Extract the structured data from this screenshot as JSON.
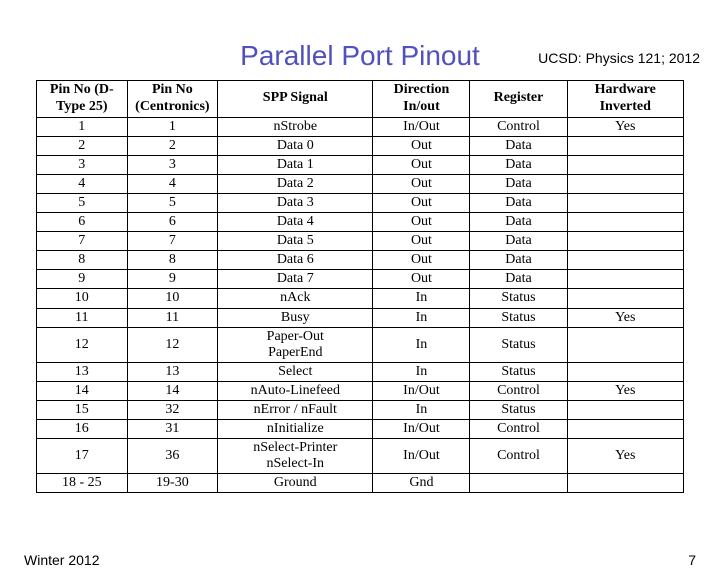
{
  "header": {
    "course": "UCSD: Physics 121; 2012"
  },
  "title": "Parallel Port Pinout",
  "table": {
    "columns": [
      "Pin No (D-Type 25)",
      "Pin No (Centronics)",
      "SPP Signal",
      "Direction In/out",
      "Register",
      "Hardware Inverted"
    ],
    "rows": [
      {
        "c": [
          "1",
          "1",
          "nStrobe",
          "In/Out",
          "Control",
          "Yes"
        ],
        "sub": null
      },
      {
        "c": [
          "2",
          "2",
          "Data 0",
          "Out",
          "Data",
          ""
        ],
        "sub": null
      },
      {
        "c": [
          "3",
          "3",
          "Data 1",
          "Out",
          "Data",
          ""
        ],
        "sub": null
      },
      {
        "c": [
          "4",
          "4",
          "Data 2",
          "Out",
          "Data",
          ""
        ],
        "sub": null
      },
      {
        "c": [
          "5",
          "5",
          "Data 3",
          "Out",
          "Data",
          ""
        ],
        "sub": null
      },
      {
        "c": [
          "6",
          "6",
          "Data 4",
          "Out",
          "Data",
          ""
        ],
        "sub": null
      },
      {
        "c": [
          "7",
          "7",
          "Data 5",
          "Out",
          "Data",
          ""
        ],
        "sub": null
      },
      {
        "c": [
          "8",
          "8",
          "Data 6",
          "Out",
          "Data",
          ""
        ],
        "sub": null
      },
      {
        "c": [
          "9",
          "9",
          "Data 7",
          "Out",
          "Data",
          ""
        ],
        "sub": null
      },
      {
        "c": [
          "10",
          "10",
          "nAck",
          "In",
          "Status",
          ""
        ],
        "sub": null
      },
      {
        "c": [
          "11",
          "11",
          "Busy",
          "In",
          "Status",
          "Yes"
        ],
        "sub": null
      },
      {
        "c": [
          "12",
          "12",
          "Paper-Out",
          "In",
          "Status",
          ""
        ],
        "sub": "PaperEnd"
      },
      {
        "c": [
          "13",
          "13",
          "Select",
          "In",
          "Status",
          ""
        ],
        "sub": null
      },
      {
        "c": [
          "14",
          "14",
          "nAuto-Linefeed",
          "In/Out",
          "Control",
          "Yes"
        ],
        "sub": null
      },
      {
        "c": [
          "15",
          "32",
          "nError / nFault",
          "In",
          "Status",
          ""
        ],
        "sub": null
      },
      {
        "c": [
          "16",
          "31",
          "nInitialize",
          "In/Out",
          "Control",
          ""
        ],
        "sub": null
      },
      {
        "c": [
          "17",
          "36",
          "nSelect-Printer",
          "In/Out",
          "Control",
          "Yes"
        ],
        "sub": "nSelect-In"
      },
      {
        "c": [
          "18 - 25",
          "19-30",
          "Ground",
          "Gnd",
          "",
          ""
        ],
        "sub": null
      }
    ],
    "style": {
      "border_color": "#000000",
      "header_font_weight": "bold",
      "cell_font_family": "Times New Roman",
      "cell_font_size_pt": 11,
      "text_align": "center",
      "background_color": "#ffffff"
    }
  },
  "footer": {
    "term": "Winter 2012",
    "page": "7"
  },
  "colors": {
    "title_color": "#5050c0",
    "text_color": "#000000",
    "background": "#ffffff"
  },
  "typography": {
    "title_font_family": "Arial",
    "title_font_size_pt": 21,
    "body_font_family": "Arial",
    "body_font_size_pt": 11
  }
}
